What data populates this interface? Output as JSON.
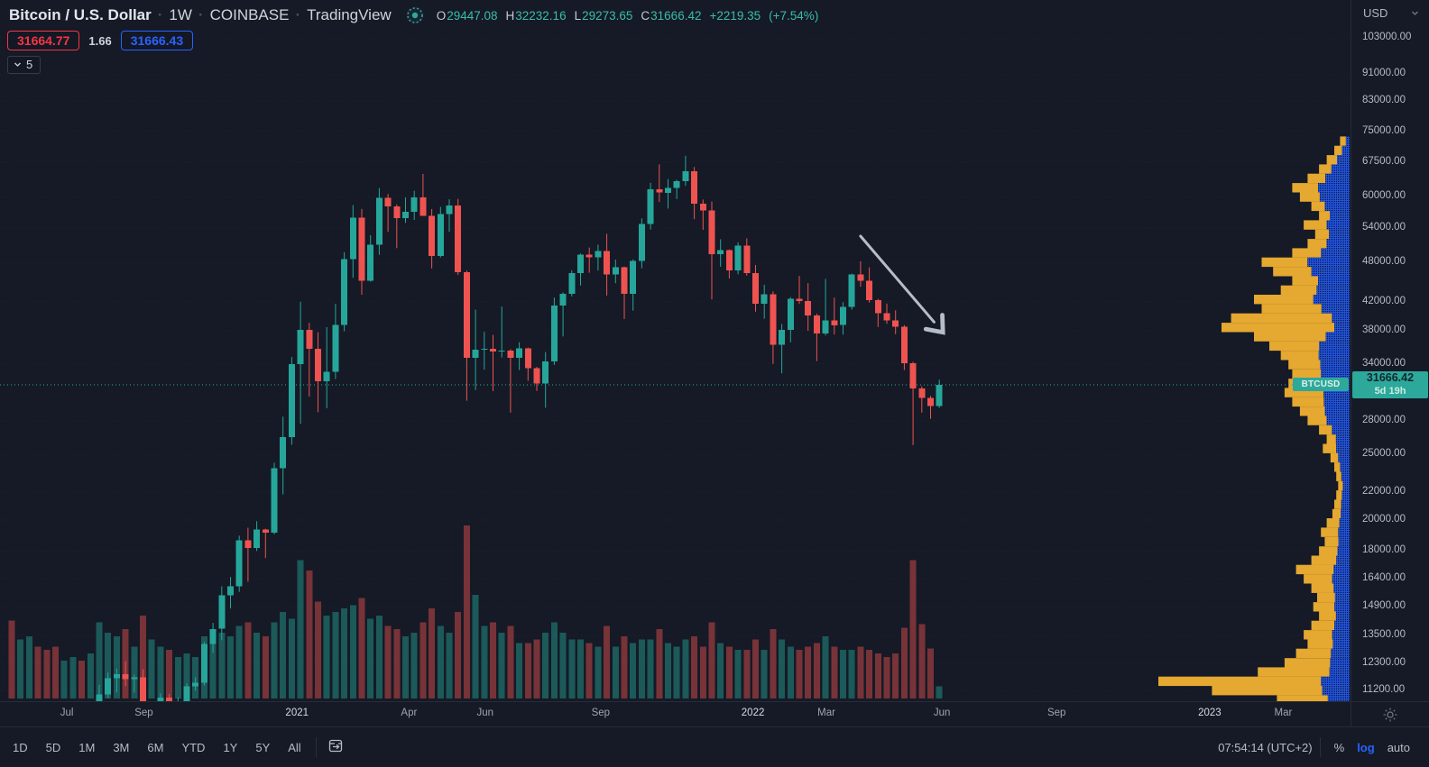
{
  "header": {
    "symbol_title": "Bitcoin / U.S. Dollar",
    "separator": "·",
    "interval": "1W",
    "exchange": "COINBASE",
    "platform": "TradingView",
    "ohlc": {
      "o_label": "O",
      "o": "29447.08",
      "h_label": "H",
      "h": "32232.16",
      "l_label": "L",
      "l": "29273.65",
      "c_label": "C",
      "c": "31666.42",
      "change": "+2219.35",
      "change_pct": "(+7.54%)"
    },
    "sell_price": "31664.77",
    "spread": "1.66",
    "buy_price": "31666.43",
    "collapsed_indicators_count": "5"
  },
  "price_axis": {
    "currency_label": "USD",
    "price_tag": {
      "price": "31666.42",
      "countdown": "5d 19h"
    },
    "symbol_tag": "BTCUSD"
  },
  "toolbar": {
    "ranges": [
      "1D",
      "5D",
      "1M",
      "3M",
      "6M",
      "YTD",
      "1Y",
      "5Y",
      "All"
    ],
    "clock": "07:54:14 (UTC+2)",
    "percent_label": "%",
    "log_label": "log",
    "auto_label": "auto"
  },
  "colors": {
    "background": "#151a26",
    "up": "#26a69a",
    "down": "#ef5350",
    "profile_yellow": "#e5a830",
    "profile_blue": "#1e53e5",
    "accent_blue": "#2962ff",
    "sell_red": "#f23645",
    "value_teal": "#3bbca9",
    "tag_teal": "#2ca99b",
    "arrow_gray": "#b7bdc6"
  },
  "chart_data": {
    "type": "candlestick+volume+volume-profile",
    "symbol": "BTCUSD",
    "exchange": "COINBASE",
    "interval": "1W",
    "scale": "log",
    "current_price": 31666.42,
    "countdown": "5d 19h",
    "y_ticks": [
      103000,
      91000,
      83000,
      75000,
      67500,
      60000,
      54000,
      48000,
      42000,
      38000,
      34000,
      28000,
      25000,
      22000,
      20000,
      18000,
      16400,
      14900,
      13500,
      12300,
      11200
    ],
    "time_ticks": [
      {
        "label": "Jul",
        "week": 6.3,
        "major": false
      },
      {
        "label": "Sep",
        "week": 15.1,
        "major": false
      },
      {
        "label": "2021",
        "week": 32.6,
        "major": true
      },
      {
        "label": "Apr",
        "week": 45.4,
        "major": false
      },
      {
        "label": "Jun",
        "week": 54.1,
        "major": false
      },
      {
        "label": "Sep",
        "week": 67.3,
        "major": false
      },
      {
        "label": "2022",
        "week": 84.7,
        "major": true
      },
      {
        "label": "Mar",
        "week": 93.1,
        "major": false
      },
      {
        "label": "Jun",
        "week": 106.3,
        "major": false
      },
      {
        "label": "Sep",
        "week": 119.4,
        "major": false
      },
      {
        "label": "2023",
        "week": 136.9,
        "major": true
      },
      {
        "label": "Mar",
        "week": 145.3,
        "major": false
      }
    ],
    "candles_format": [
      "open",
      "high",
      "low",
      "close",
      "relative_volume"
    ],
    "candles": [
      [
        9675,
        9950,
        8700,
        8720,
        0.45
      ],
      [
        8720,
        9620,
        8642,
        9446,
        0.34
      ],
      [
        9446,
        10429,
        9330,
        9666,
        0.36
      ],
      [
        9666,
        9964,
        8910,
        9358,
        0.3
      ],
      [
        9358,
        9550,
        8892,
        9297,
        0.28
      ],
      [
        9297,
        9750,
        8833,
        9135,
        0.3
      ],
      [
        9135,
        9290,
        8932,
        9235,
        0.22
      ],
      [
        9235,
        9470,
        9101,
        9302,
        0.24
      ],
      [
        9302,
        9340,
        9047,
        9164,
        0.22
      ],
      [
        9164,
        9720,
        9113,
        9700,
        0.26
      ],
      [
        9700,
        11420,
        9664,
        11057,
        0.44
      ],
      [
        11057,
        11909,
        10924,
        11681,
        0.38
      ],
      [
        11681,
        12067,
        11125,
        11852,
        0.36
      ],
      [
        11852,
        12380,
        11371,
        11649,
        0.4
      ],
      [
        11649,
        11825,
        11121,
        11711,
        0.3
      ],
      [
        11711,
        12045,
        9900,
        10269,
        0.48
      ],
      [
        10269,
        10580,
        9825,
        10323,
        0.34
      ],
      [
        10323,
        11097,
        10212,
        10938,
        0.3
      ],
      [
        10938,
        11075,
        10136,
        10693,
        0.28
      ],
      [
        10693,
        10953,
        10374,
        10784,
        0.24
      ],
      [
        10784,
        11480,
        10527,
        11369,
        0.26
      ],
      [
        11369,
        11725,
        11200,
        11508,
        0.24
      ],
      [
        11508,
        13217,
        11400,
        13116,
        0.36
      ],
      [
        13116,
        14100,
        12730,
        13814,
        0.34
      ],
      [
        13814,
        15960,
        13290,
        15479,
        0.38
      ],
      [
        15479,
        16480,
        14805,
        15955,
        0.36
      ],
      [
        15955,
        18965,
        15664,
        18677,
        0.42
      ],
      [
        18677,
        19484,
        16218,
        18177,
        0.44
      ],
      [
        18177,
        19920,
        18001,
        19359,
        0.38
      ],
      [
        19359,
        19420,
        17572,
        19164,
        0.36
      ],
      [
        19164,
        24300,
        19050,
        23861,
        0.44
      ],
      [
        23861,
        28422,
        21815,
        26493,
        0.5
      ],
      [
        26493,
        34800,
        25830,
        33992,
        0.46
      ],
      [
        33992,
        41986,
        27734,
        38150,
        0.8
      ],
      [
        38150,
        39090,
        30420,
        35791,
        0.74
      ],
      [
        35791,
        37850,
        28845,
        32067,
        0.56
      ],
      [
        32067,
        38531,
        29241,
        33092,
        0.48
      ],
      [
        33092,
        41700,
        32296,
        38795,
        0.5
      ],
      [
        38795,
        49700,
        37988,
        48580,
        0.52
      ],
      [
        48580,
        58350,
        45570,
        55888,
        0.54
      ],
      [
        55888,
        57600,
        43016,
        45135,
        0.58
      ],
      [
        45135,
        52650,
        44950,
        50971,
        0.46
      ],
      [
        50971,
        61800,
        49274,
        59769,
        0.48
      ],
      [
        59769,
        60595,
        53250,
        58050,
        0.42
      ],
      [
        58050,
        58471,
        50400,
        55850,
        0.4
      ],
      [
        55850,
        59880,
        54890,
        57059,
        0.36
      ],
      [
        57059,
        61250,
        55470,
        59846,
        0.38
      ],
      [
        59846,
        64850,
        59550,
        56216,
        0.44
      ],
      [
        56216,
        57560,
        47044,
        49077,
        0.52
      ],
      [
        49077,
        58000,
        48817,
        56600,
        0.42
      ],
      [
        56600,
        59500,
        53300,
        58250,
        0.38
      ],
      [
        58250,
        59592,
        46000,
        46430,
        0.5
      ],
      [
        46430,
        46686,
        30000,
        34715,
        1.0
      ],
      [
        34715,
        40900,
        31111,
        35664,
        0.6
      ],
      [
        35664,
        37917,
        33333,
        35790,
        0.42
      ],
      [
        35790,
        37534,
        31000,
        35483,
        0.44
      ],
      [
        35483,
        41330,
        34750,
        35600,
        0.38
      ],
      [
        35600,
        35750,
        28805,
        34709,
        0.42
      ],
      [
        34709,
        36600,
        33300,
        35867,
        0.32
      ],
      [
        35867,
        35937,
        32100,
        33503,
        0.32
      ],
      [
        33503,
        33650,
        31020,
        31796,
        0.34
      ],
      [
        31796,
        35398,
        29296,
        34290,
        0.38
      ],
      [
        34290,
        42599,
        33879,
        41461,
        0.44
      ],
      [
        41461,
        43360,
        37332,
        43177,
        0.38
      ],
      [
        43177,
        46743,
        42769,
        46285,
        0.34
      ],
      [
        46285,
        49500,
        44376,
        49322,
        0.34
      ],
      [
        49322,
        50505,
        46350,
        48821,
        0.32
      ],
      [
        48821,
        51000,
        46700,
        49918,
        0.3
      ],
      [
        49918,
        52920,
        42900,
        46063,
        0.42
      ],
      [
        46063,
        48475,
        44742,
        47260,
        0.3
      ],
      [
        47260,
        47350,
        39600,
        43160,
        0.36
      ],
      [
        43160,
        48495,
        40750,
        48238,
        0.32
      ],
      [
        48238,
        55755,
        47048,
        54689,
        0.34
      ],
      [
        54689,
        62933,
        53675,
        61553,
        0.34
      ],
      [
        61553,
        66999,
        58963,
        60852,
        0.4
      ],
      [
        60852,
        63729,
        57655,
        61850,
        0.32
      ],
      [
        61850,
        63600,
        59559,
        63273,
        0.3
      ],
      [
        63273,
        68990,
        62278,
        65466,
        0.34
      ],
      [
        65466,
        66401,
        55600,
        58619,
        0.36
      ],
      [
        58619,
        59444,
        53609,
        57248,
        0.3
      ],
      [
        57248,
        59053,
        42333,
        49362,
        0.44
      ],
      [
        49362,
        51936,
        47320,
        50098,
        0.32
      ],
      [
        50098,
        50189,
        45456,
        46702,
        0.3
      ],
      [
        46702,
        51375,
        46096,
        50809,
        0.28
      ],
      [
        50809,
        52088,
        45900,
        46306,
        0.28
      ],
      [
        46306,
        47573,
        40610,
        41732,
        0.34
      ],
      [
        41732,
        44500,
        39650,
        43097,
        0.28
      ],
      [
        43097,
        43500,
        34008,
        36276,
        0.4
      ],
      [
        36276,
        38960,
        32933,
        38189,
        0.34
      ],
      [
        38189,
        42656,
        36586,
        42412,
        0.3
      ],
      [
        42412,
        45855,
        41688,
        42075,
        0.28
      ],
      [
        42075,
        44751,
        38050,
        40090,
        0.3
      ],
      [
        40090,
        40348,
        34322,
        37712,
        0.32
      ],
      [
        37712,
        45400,
        37458,
        39400,
        0.36
      ],
      [
        39400,
        42594,
        37578,
        38794,
        0.3
      ],
      [
        38794,
        41950,
        37570,
        41254,
        0.28
      ],
      [
        41254,
        46200,
        40895,
        46100,
        0.28
      ],
      [
        46100,
        48189,
        44200,
        45100,
        0.3
      ],
      [
        45100,
        47212,
        41868,
        42252,
        0.28
      ],
      [
        42252,
        42421,
        38550,
        40384,
        0.26
      ],
      [
        40384,
        41760,
        38961,
        39418,
        0.24
      ],
      [
        39418,
        40795,
        37610,
        38596,
        0.26
      ],
      [
        38596,
        38800,
        33300,
        34059,
        0.41
      ],
      [
        34059,
        34243,
        25800,
        31300,
        0.8
      ],
      [
        31300,
        31500,
        28800,
        30300,
        0.43
      ],
      [
        30300,
        30500,
        28200,
        29447,
        0.29
      ],
      [
        29447,
        32232,
        29273,
        31666.42,
        0.07
      ]
    ],
    "volume_profile_format": [
      "price",
      "relative_total_volume",
      "sell_fraction_yellow"
    ],
    "volume_profile": [
      [
        72500,
        0.05,
        0.6
      ],
      [
        70250,
        0.08,
        0.5
      ],
      [
        68050,
        0.12,
        0.45
      ],
      [
        65930,
        0.16,
        0.4
      ],
      [
        63880,
        0.22,
        0.42
      ],
      [
        61890,
        0.3,
        0.45
      ],
      [
        59960,
        0.26,
        0.4
      ],
      [
        58090,
        0.2,
        0.35
      ],
      [
        56280,
        0.16,
        0.35
      ],
      [
        54530,
        0.24,
        0.5
      ],
      [
        52830,
        0.18,
        0.4
      ],
      [
        51180,
        0.22,
        0.45
      ],
      [
        49590,
        0.3,
        0.5
      ],
      [
        48040,
        0.46,
        0.52
      ],
      [
        46540,
        0.4,
        0.5
      ],
      [
        45090,
        0.3,
        0.45
      ],
      [
        43690,
        0.36,
        0.52
      ],
      [
        42330,
        0.5,
        0.62
      ],
      [
        41010,
        0.46,
        0.68
      ],
      [
        39730,
        0.62,
        0.85
      ],
      [
        38490,
        0.67,
        0.88
      ],
      [
        37290,
        0.5,
        0.75
      ],
      [
        36130,
        0.42,
        0.62
      ],
      [
        35000,
        0.36,
        0.55
      ],
      [
        33910,
        0.32,
        0.52
      ],
      [
        32850,
        0.3,
        0.5
      ],
      [
        31830,
        0.32,
        0.58
      ],
      [
        30840,
        0.34,
        0.6
      ],
      [
        29880,
        0.3,
        0.55
      ],
      [
        28950,
        0.26,
        0.5
      ],
      [
        28050,
        0.22,
        0.45
      ],
      [
        27170,
        0.16,
        0.42
      ],
      [
        26320,
        0.12,
        0.4
      ],
      [
        25500,
        0.14,
        0.5
      ],
      [
        24710,
        0.1,
        0.4
      ],
      [
        23940,
        0.08,
        0.38
      ],
      [
        23190,
        0.07,
        0.38
      ],
      [
        22470,
        0.06,
        0.4
      ],
      [
        21770,
        0.07,
        0.42
      ],
      [
        21090,
        0.08,
        0.45
      ],
      [
        20430,
        0.09,
        0.48
      ],
      [
        19800,
        0.12,
        0.55
      ],
      [
        19180,
        0.15,
        0.6
      ],
      [
        18580,
        0.13,
        0.55
      ],
      [
        18000,
        0.16,
        0.6
      ],
      [
        17440,
        0.2,
        0.65
      ],
      [
        16900,
        0.28,
        0.7
      ],
      [
        16370,
        0.24,
        0.62
      ],
      [
        15860,
        0.2,
        0.58
      ],
      [
        15370,
        0.17,
        0.55
      ],
      [
        14890,
        0.19,
        0.58
      ],
      [
        14430,
        0.16,
        0.55
      ],
      [
        13980,
        0.2,
        0.6
      ],
      [
        13540,
        0.24,
        0.62
      ],
      [
        13120,
        0.22,
        0.6
      ],
      [
        12710,
        0.28,
        0.65
      ],
      [
        12310,
        0.34,
        0.7
      ],
      [
        11930,
        0.48,
        0.78
      ],
      [
        11560,
        1.0,
        0.85
      ],
      [
        11200,
        0.72,
        0.8
      ],
      [
        10850,
        0.38,
        0.7
      ]
    ],
    "annotations": [
      {
        "type": "arrow",
        "from_week": 97.0,
        "from_price": 52500,
        "to_week": 105.4,
        "to_price": 39200
      }
    ]
  }
}
